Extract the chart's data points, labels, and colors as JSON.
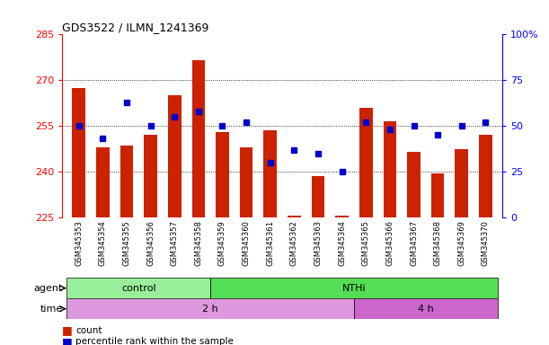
{
  "title": "GDS3522 / ILMN_1241369",
  "samples": [
    "GSM345353",
    "GSM345354",
    "GSM345355",
    "GSM345356",
    "GSM345357",
    "GSM345358",
    "GSM345359",
    "GSM345360",
    "GSM345361",
    "GSM345362",
    "GSM345363",
    "GSM345364",
    "GSM345365",
    "GSM345366",
    "GSM345367",
    "GSM345368",
    "GSM345369",
    "GSM345370"
  ],
  "counts": [
    267.5,
    248.0,
    248.5,
    252.0,
    265.0,
    276.5,
    253.0,
    248.0,
    253.5,
    225.5,
    238.5,
    225.5,
    261.0,
    256.5,
    246.5,
    239.5,
    247.5,
    252.0
  ],
  "percentiles": [
    50,
    43,
    63,
    50,
    55,
    58,
    50,
    52,
    30,
    37,
    35,
    25,
    52,
    48,
    50,
    45,
    50,
    52
  ],
  "ymin": 225,
  "ymax": 285,
  "yticks": [
    225,
    240,
    255,
    270,
    285
  ],
  "right_yticks": [
    0,
    25,
    50,
    75,
    100
  ],
  "bar_color": "#cc2200",
  "dot_color": "#0000cc",
  "grid_color": "#000000",
  "agent_groups": [
    {
      "label": "control",
      "start": 0,
      "end": 6,
      "color": "#99ee99"
    },
    {
      "label": "NTHi",
      "start": 6,
      "end": 18,
      "color": "#55dd55"
    }
  ],
  "time_groups": [
    {
      "label": "2 h",
      "start": 0,
      "end": 12,
      "color": "#dd99dd"
    },
    {
      "label": "4 h",
      "start": 12,
      "end": 18,
      "color": "#cc66cc"
    }
  ],
  "legend_count_label": "count",
  "legend_pct_label": "percentile rank within the sample",
  "agent_label": "agent",
  "time_label": "time",
  "bar_width": 0.55,
  "xlabel_bg": "#dddddd"
}
